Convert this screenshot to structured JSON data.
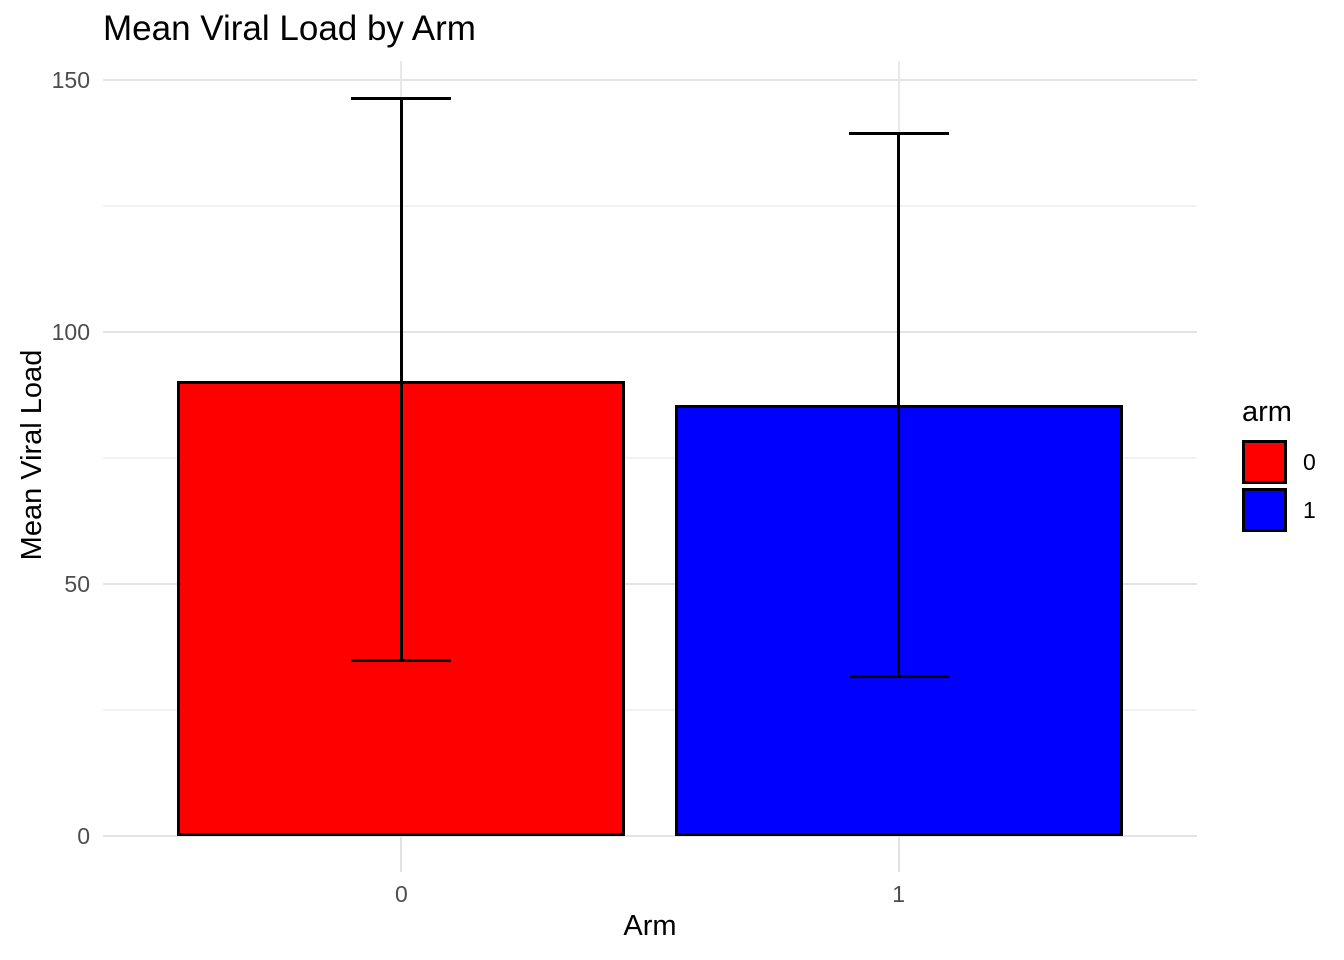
{
  "chart_data": {
    "type": "bar",
    "title": "Mean Viral Load by Arm",
    "xlabel": "Arm",
    "ylabel": "Mean Viral Load",
    "categories": [
      "0",
      "1"
    ],
    "values": [
      90.3,
      85.6
    ],
    "error_bars": {
      "lower": [
        34.9,
        31.7
      ],
      "upper": [
        146.4,
        139.4
      ]
    },
    "bar_colors": [
      "#FF0000",
      "#0000FF"
    ],
    "bar_border_color": "#000000",
    "errorbar_color": "#000000",
    "ylim": [
      0,
      150
    ],
    "ytick_values": [
      0,
      50,
      100,
      150
    ],
    "yticks_minor": [
      25,
      75,
      125
    ],
    "grid": true,
    "legend": {
      "title": "arm",
      "position": "right",
      "entries": [
        {
          "label": "0",
          "color": "#FF0000"
        },
        {
          "label": "1",
          "color": "#0000FF"
        }
      ]
    }
  }
}
